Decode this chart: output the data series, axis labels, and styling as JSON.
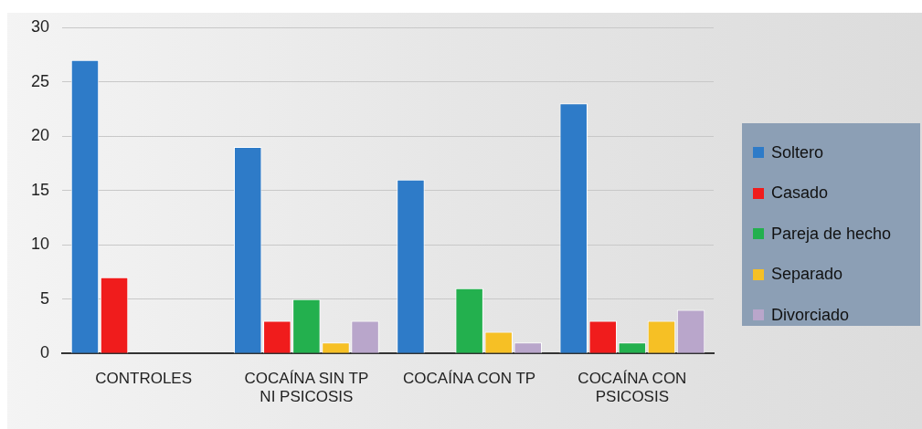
{
  "chart_data": {
    "type": "bar",
    "categories": [
      "CONTROLES",
      "COCAÍNA SIN TP NI PSICOSIS",
      "COCAÍNA CON TP",
      "COCAÍNA CON PSICOSIS"
    ],
    "series": [
      {
        "name": "Soltero",
        "color": "#2e7bc8",
        "values": [
          27,
          19,
          16,
          23
        ]
      },
      {
        "name": "Casado",
        "color": "#f01c1c",
        "values": [
          7,
          3,
          0,
          3
        ]
      },
      {
        "name": "Pareja de hecho",
        "color": "#23b04e",
        "values": [
          0,
          5,
          6,
          1
        ]
      },
      {
        "name": "Separado",
        "color": "#f6c025",
        "values": [
          0,
          1,
          2,
          3
        ]
      },
      {
        "name": "Divorciado",
        "color": "#b9a6cb",
        "values": [
          0,
          3,
          1,
          4
        ]
      }
    ],
    "ylim": [
      0,
      30
    ],
    "yticks": [
      0,
      5,
      10,
      15,
      20,
      25,
      30
    ],
    "grid": "y",
    "legend": "right"
  }
}
